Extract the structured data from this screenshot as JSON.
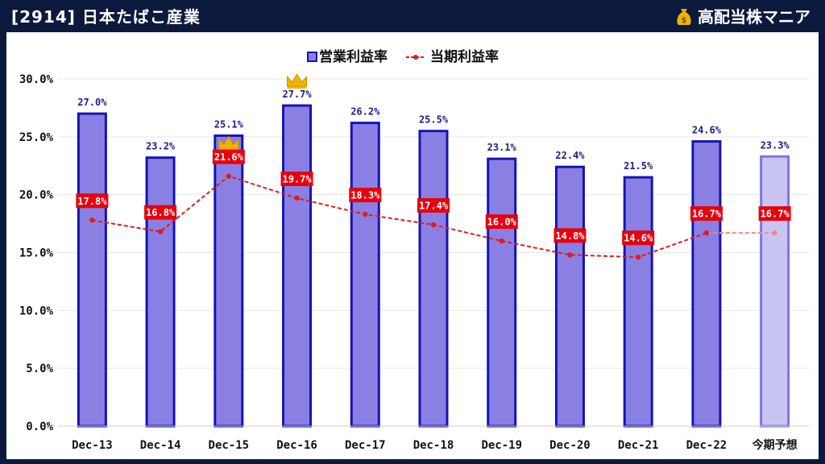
{
  "header": {
    "title": "[2914] 日本たばこ産業",
    "brand": "高配当株マニア",
    "brand_icon": "money-bag-icon"
  },
  "chart_data": {
    "type": "bar",
    "categories": [
      "Dec-13",
      "Dec-14",
      "Dec-15",
      "Dec-16",
      "Dec-17",
      "Dec-18",
      "Dec-19",
      "Dec-20",
      "Dec-21",
      "Dec-22",
      "今期予想"
    ],
    "series": [
      {
        "name": "営業利益率",
        "type": "bar",
        "values": [
          27.0,
          23.2,
          25.1,
          27.7,
          26.2,
          25.5,
          23.1,
          22.4,
          21.5,
          24.6,
          23.3
        ],
        "labels": [
          "27.0%",
          "23.2%",
          "25.1%",
          "27.7%",
          "26.2%",
          "25.5%",
          "23.1%",
          "22.4%",
          "21.5%",
          "24.6%",
          "23.3%"
        ]
      },
      {
        "name": "当期利益率",
        "type": "line",
        "values": [
          17.8,
          16.8,
          21.6,
          19.7,
          18.3,
          17.4,
          16.0,
          14.8,
          14.6,
          16.7,
          16.7
        ],
        "labels": [
          "17.8%",
          "16.8%",
          "21.6%",
          "19.7%",
          "18.3%",
          "17.4%",
          "16.0%",
          "14.8%",
          "14.6%",
          "16.7%",
          "16.7%"
        ]
      }
    ],
    "forecast_index": 10,
    "crown_indices": [
      2,
      3
    ],
    "crown_icon": "crown-icon",
    "ylim": [
      0,
      30
    ],
    "yticks": [
      "0.0%",
      "5.0%",
      "10.0%",
      "15.0%",
      "20.0%",
      "25.0%",
      "30.0%"
    ],
    "grid": true,
    "legend_placement": "top-center",
    "colors": {
      "bar_fill": "#8a80e3",
      "bar_stroke": "#1414b4",
      "forecast_fill": "#c9c5f3",
      "forecast_stroke": "#7e76de",
      "line": "#e31a1a",
      "label_bg": "#e8000b",
      "bar_label": "#1c1c8c",
      "crown": "#f2b300"
    }
  }
}
